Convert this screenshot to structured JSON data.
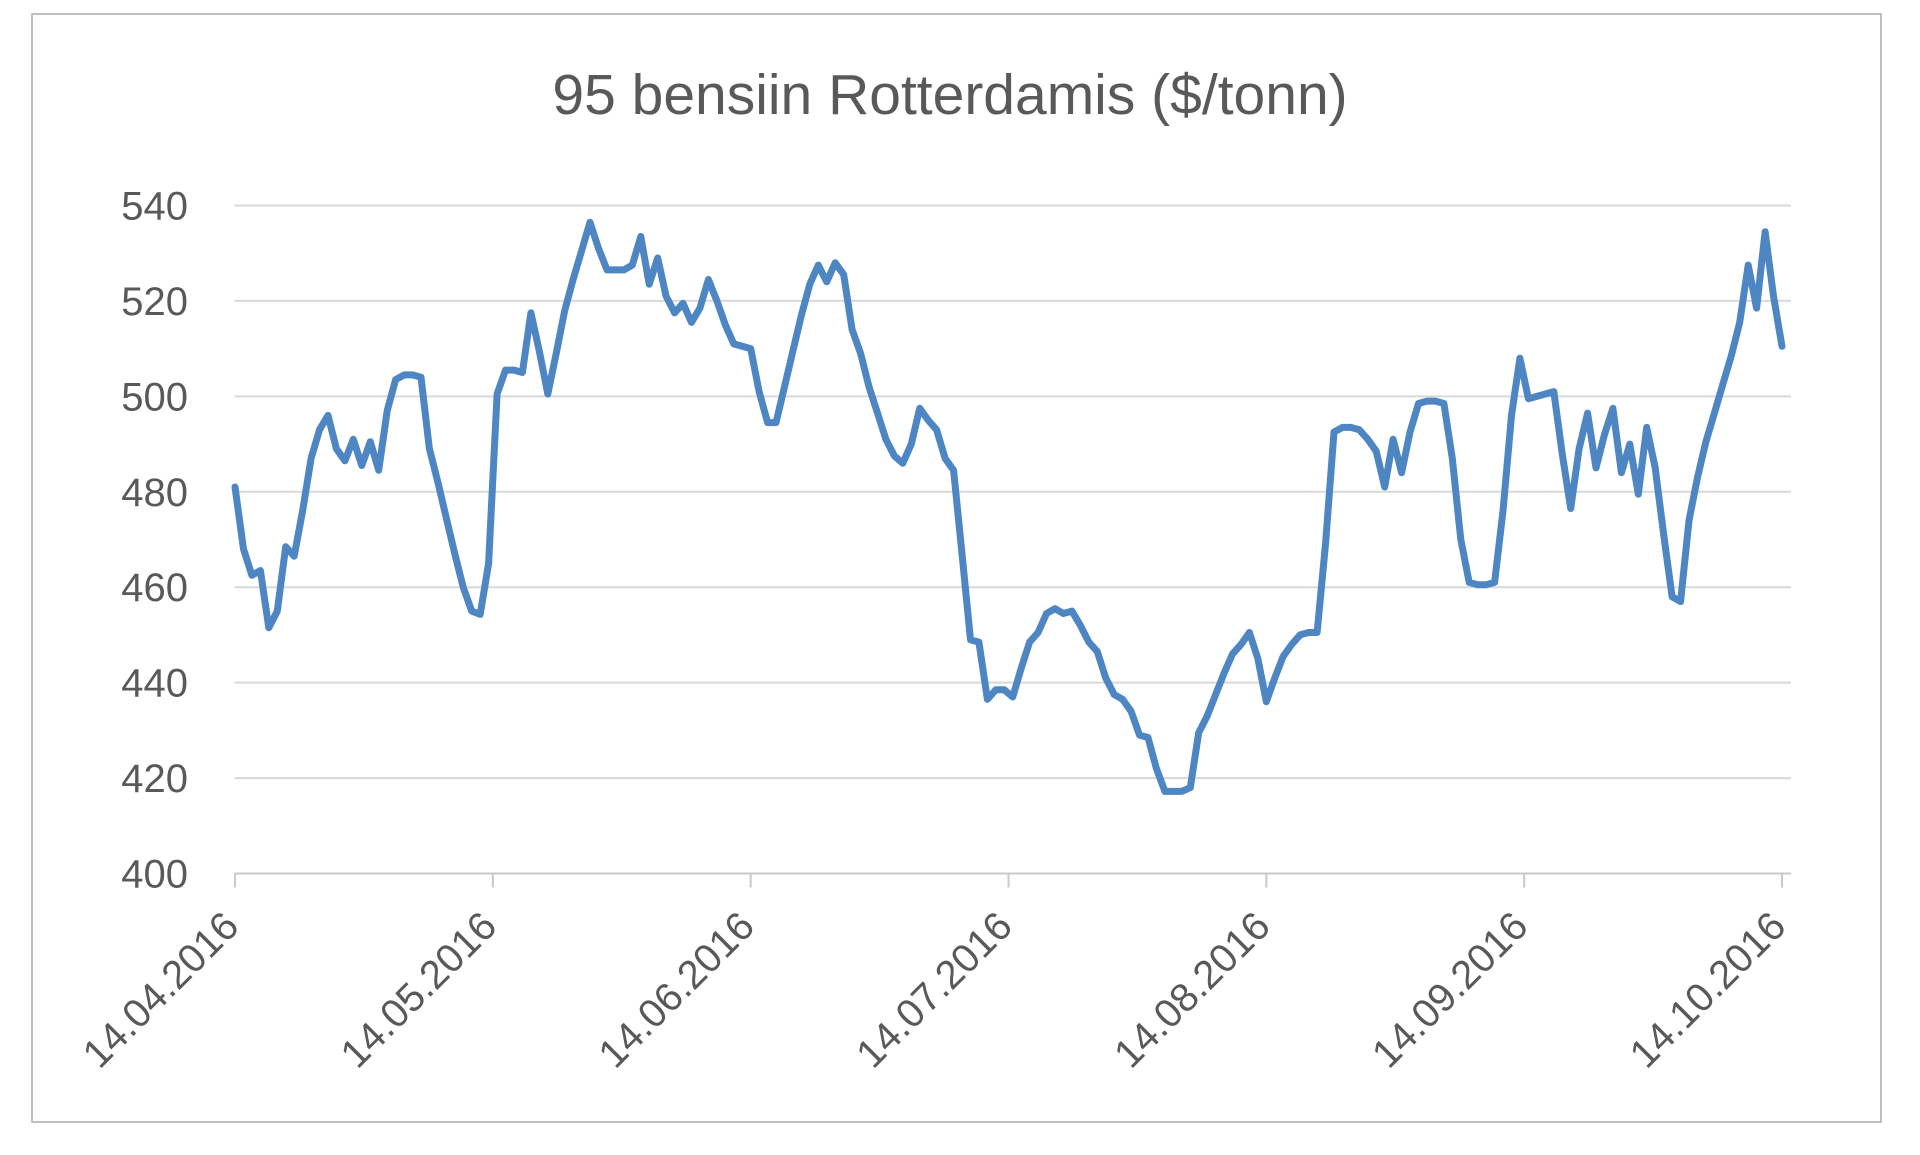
{
  "chart_data": {
    "type": "line",
    "title": "95 bensiin Rotterdamis ($/tonn)",
    "xlabel": "",
    "ylabel": "",
    "x_start": "14.04.2016",
    "x_end": "14.10.2016",
    "x_tick_labels": [
      "14.04.2016",
      "14.05.2016",
      "14.06.2016",
      "14.07.2016",
      "14.08.2016",
      "14.09.2016",
      "14.10.2016"
    ],
    "y_tick_labels": [
      "540",
      "520",
      "500",
      "480",
      "460",
      "440",
      "420",
      "400"
    ],
    "ylim": [
      400,
      540
    ],
    "y_tick_step": 20,
    "grid": true,
    "legend": "none",
    "series_name": "95 bensiin Rotterdamis",
    "values": [
      481,
      468,
      462.5,
      463.5,
      451.5,
      455,
      468.5,
      466.5,
      476,
      487,
      493,
      496,
      489,
      486.5,
      491,
      485.5,
      490.5,
      484.5,
      497,
      503.5,
      504.5,
      504.5,
      504,
      489,
      482,
      474.5,
      467,
      460,
      455,
      454.3,
      465,
      500.5,
      505.5,
      505.5,
      505,
      517.5,
      509.5,
      500.5,
      509,
      518,
      524.5,
      530.5,
      536.5,
      531,
      526.5,
      526.5,
      526.5,
      527.5,
      533.5,
      523.5,
      529,
      521,
      517.5,
      519.5,
      515.5,
      518.5,
      524.5,
      520,
      515,
      511,
      510.5,
      510,
      501,
      494.5,
      494.5,
      502,
      509.5,
      517,
      523.5,
      527.5,
      524,
      528,
      525.5,
      514,
      509,
      502,
      496.5,
      491,
      487.5,
      486,
      490,
      497.5,
      495,
      493,
      487,
      484.5,
      467,
      449,
      448.5,
      436.5,
      438.5,
      438.5,
      437,
      443,
      448.5,
      450.5,
      454.5,
      455.5,
      454.5,
      455,
      452,
      448.5,
      446.5,
      441,
      437.5,
      436.5,
      434,
      429,
      428.5,
      422,
      417.2,
      417.2,
      417.2,
      418,
      429.5,
      433,
      437.5,
      442,
      446,
      448,
      450.5,
      445,
      436,
      441,
      445.5,
      448,
      450,
      450.5,
      450.5,
      469,
      492.5,
      493.5,
      493.5,
      493,
      491,
      488.5,
      481,
      491,
      484,
      492.5,
      498.5,
      499,
      499,
      498.5,
      487,
      470,
      461,
      460.5,
      460.5,
      461,
      476,
      496,
      508,
      499.5,
      500,
      500.5,
      501,
      488,
      476.5,
      489,
      496.5,
      485,
      492,
      497.5,
      484,
      490,
      479.5,
      493.5,
      485,
      471,
      458,
      457,
      474,
      483,
      490.5,
      496.5,
      502.5,
      508.5,
      515.5,
      527.5,
      518.5,
      534.5,
      521,
      510.5
    ]
  },
  "colors": {
    "line": "#4E86C4",
    "grid": "#D9D9D9",
    "axis": "#C9C9C9",
    "text": "#595959",
    "frame_border": "#BFBFBF",
    "background": "#FFFFFF"
  }
}
